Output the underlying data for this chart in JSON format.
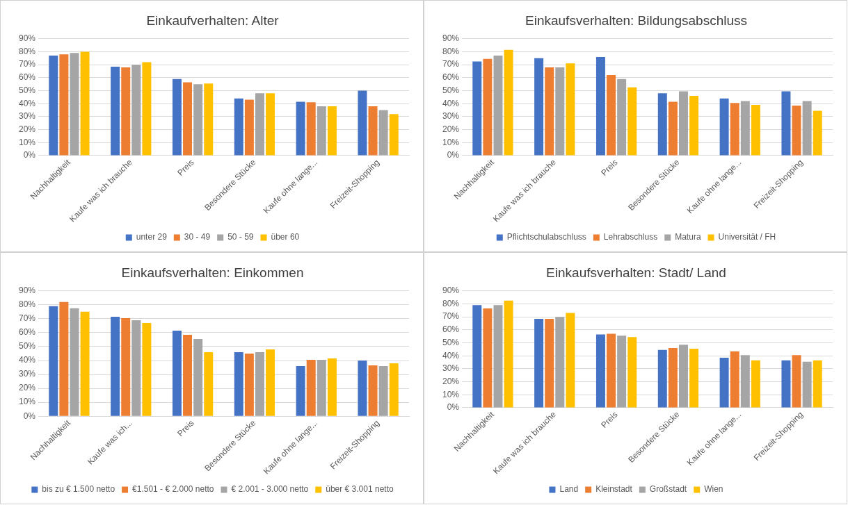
{
  "chart_data": [
    {
      "type": "bar",
      "title": "Einkaufverhalten: Alter",
      "categories": [
        "Nachhaltigkeit",
        "Kaufe was ich brauche",
        "Preis",
        "Besondere Stücke",
        "Kaufe ohne lange...",
        "Freizeit-Shopping"
      ],
      "series": [
        {
          "name": "unter 29",
          "color": "#4472c4",
          "values": [
            77,
            68.5,
            59,
            44,
            41.5,
            50
          ]
        },
        {
          "name": "30 - 49",
          "color": "#ed7d31",
          "values": [
            78,
            68,
            56.5,
            43,
            41,
            38
          ]
        },
        {
          "name": "50 - 59",
          "color": "#a5a5a5",
          "values": [
            79,
            70,
            55,
            48,
            38,
            35
          ]
        },
        {
          "name": "über 60",
          "color": "#ffc000",
          "values": [
            80,
            72,
            55.5,
            48,
            38,
            32
          ]
        }
      ],
      "ylim": [
        0,
        90
      ],
      "yticks": [
        {
          "value": 0,
          "label": "0%"
        },
        {
          "value": 10,
          "label": "10%"
        },
        {
          "value": 20,
          "label": "20%"
        },
        {
          "value": 30,
          "label": "30%"
        },
        {
          "value": 40,
          "label": "40%"
        },
        {
          "value": 50,
          "label": "50%"
        },
        {
          "value": 60,
          "label": "60%"
        },
        {
          "value": 70,
          "label": "70%"
        },
        {
          "value": 80,
          "label": "80%"
        },
        {
          "value": 90,
          "label": "90%"
        }
      ],
      "grid": "y",
      "legend": "bottom"
    },
    {
      "type": "bar",
      "title": "Einkaufsverhalten: Bildungsabschluss",
      "categories": [
        "Nachhaltigkeit",
        "Kaufe was ich brauche",
        "Preis",
        "Besondere Stücke",
        "Kaufe ohne lange...",
        "Freizeit-Shopping"
      ],
      "series": [
        {
          "name": "Pflichtschulabschluss",
          "color": "#4472c4",
          "values": [
            72.5,
            75,
            76,
            48,
            44,
            49.5
          ]
        },
        {
          "name": "Lehrabschluss",
          "color": "#ed7d31",
          "values": [
            74.5,
            68,
            62,
            41.5,
            40.5,
            38.5
          ]
        },
        {
          "name": "Matura",
          "color": "#a5a5a5",
          "values": [
            77,
            68,
            59,
            49.5,
            42,
            42
          ]
        },
        {
          "name": "Universität / FH",
          "color": "#ffc000",
          "values": [
            81.5,
            71,
            52.5,
            46,
            39,
            34.5
          ]
        }
      ],
      "ylim": [
        0,
        90
      ],
      "yticks": [
        {
          "value": 0,
          "label": "0%"
        },
        {
          "value": 10,
          "label": "10%"
        },
        {
          "value": 20,
          "label": "20%"
        },
        {
          "value": 30,
          "label": "30%"
        },
        {
          "value": 40,
          "label": "40%"
        },
        {
          "value": 50,
          "label": "50%"
        },
        {
          "value": 60,
          "label": "60%"
        },
        {
          "value": 70,
          "label": "70%"
        },
        {
          "value": 80,
          "label": "80%"
        },
        {
          "value": 90,
          "label": "90%"
        }
      ],
      "grid": "y",
      "legend": "bottom"
    },
    {
      "type": "bar",
      "title": "Einkaufsverhalten: Einkommen",
      "categories": [
        "Nachhaltigkeit",
        "Kaufe was ich...",
        "Preis",
        "Besondere Stücke",
        "Kaufe ohne lange...",
        "Freizeit-Shopping"
      ],
      "series": [
        {
          "name": "bis zu € 1.500 netto",
          "color": "#4472c4",
          "values": [
            79,
            71.5,
            61.5,
            46,
            36,
            40
          ]
        },
        {
          "name": "€1.501 - € 2.000 netto",
          "color": "#ed7d31",
          "values": [
            82,
            70.5,
            58.5,
            45,
            40.5,
            36.5
          ]
        },
        {
          "name": "€ 2.001 - 3.000 netto",
          "color": "#a5a5a5",
          "values": [
            77.5,
            69,
            55.5,
            46,
            40.5,
            36
          ]
        },
        {
          "name": "über € 3.001 netto",
          "color": "#ffc000",
          "values": [
            75,
            67,
            46,
            48,
            41.5,
            38
          ]
        }
      ],
      "ylim": [
        0,
        90
      ],
      "yticks": [
        {
          "value": 0,
          "label": "0%"
        },
        {
          "value": 10,
          "label": "10%"
        },
        {
          "value": 20,
          "label": "20%"
        },
        {
          "value": 30,
          "label": "30%"
        },
        {
          "value": 40,
          "label": "40%"
        },
        {
          "value": 50,
          "label": "50%"
        },
        {
          "value": 60,
          "label": "60%"
        },
        {
          "value": 70,
          "label": "70%"
        },
        {
          "value": 80,
          "label": "80%"
        },
        {
          "value": 90,
          "label": "90%"
        }
      ],
      "grid": "y",
      "legend": "bottom"
    },
    {
      "type": "bar",
      "title": "Einkaufsverhalten: Stadt/ Land",
      "categories": [
        "Nachhaltigkeit",
        "Kaufe was ich brauche",
        "Preis",
        "Besondere Stücke",
        "Kaufe ohne lange...",
        "Freizeit-Shopping"
      ],
      "series": [
        {
          "name": "Land",
          "color": "#4472c4",
          "values": [
            79,
            68.5,
            56.5,
            44.5,
            38.5,
            36.5
          ]
        },
        {
          "name": "Kleinstadt",
          "color": "#ed7d31",
          "values": [
            76.5,
            68.5,
            57,
            46,
            43.5,
            40.5
          ]
        },
        {
          "name": "Großstadt",
          "color": "#a5a5a5",
          "values": [
            79,
            70,
            55.5,
            48.5,
            40.5,
            35.5
          ]
        },
        {
          "name": "Wien",
          "color": "#ffc000",
          "values": [
            82.5,
            73,
            54.5,
            45.5,
            36.5,
            36.5
          ]
        }
      ],
      "ylim": [
        0,
        90
      ],
      "yticks": [
        {
          "value": 0,
          "label": "0%"
        },
        {
          "value": 10,
          "label": "10%"
        },
        {
          "value": 20,
          "label": "20%"
        },
        {
          "value": 30,
          "label": "30%"
        },
        {
          "value": 40,
          "label": "40%"
        },
        {
          "value": 50,
          "label": "50%"
        },
        {
          "value": 60,
          "label": "60%"
        },
        {
          "value": 70,
          "label": "70%"
        },
        {
          "value": 80,
          "label": "80%"
        },
        {
          "value": 90,
          "label": "90%"
        }
      ],
      "grid": "y",
      "legend": "bottom"
    }
  ]
}
